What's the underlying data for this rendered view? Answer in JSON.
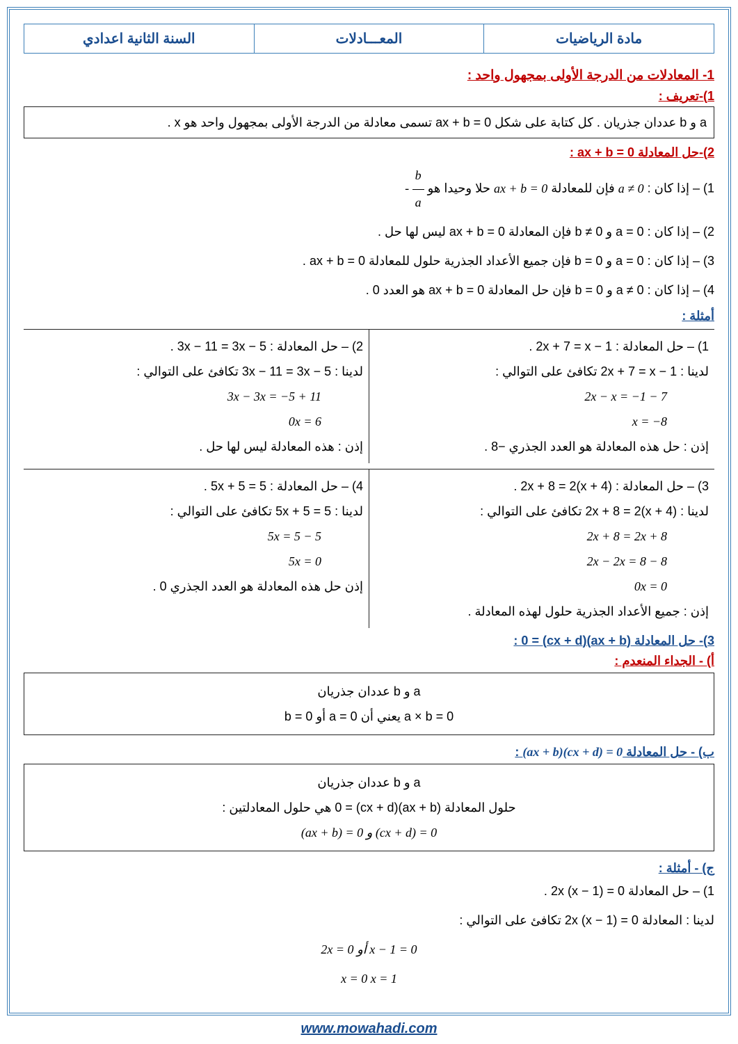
{
  "header": {
    "subject": "مادة الرياضيات",
    "topic": "المعـــادلات",
    "level": "السنة الثانية اعدادي"
  },
  "section1": {
    "title": "1- المعادلات من الدرجة الأولى بمجهول واحد :",
    "def_title": "1)-تعريف :",
    "def_text": "a و b عددان جذريان . كل كتابة على شكل ax + b = 0 تسمى معادلة من الدرجة الأولى بمجهول واحد هو x .",
    "solve_title": "2)-حل المعادلة    ax + b = 0 :",
    "case1_pre": "1) – إذا كان :  ",
    "case1_cond": "a ≠ 0",
    "case1_mid": "  فإن للمعادلة  ",
    "case1_eq": "ax + b = 0",
    "case1_post": "  حلا وحيدا هو  ",
    "case2": "2) – إذا كان :  a = 0  و  b ≠ 0  فإن المعادلة ax + b = 0  ليس لها حل .",
    "case3": "3) – إذا كان :  a = 0  و  b = 0  فإن جميع الأعداد الجذرية حلول للمعادلة ax + b = 0 .",
    "case4": "4) – إذا كان :  a ≠ 0  و  b = 0  فإن حل المعادلة ax + b = 0  هو العدد 0 .",
    "examples_title": "أمثلة :",
    "ex1_title": "1) – حل المعادلة :  2x + 7 = x − 1 .",
    "ex1_l1": "لدينا :    2x + 7 = x − 1   تكافئ على التوالي :",
    "ex1_l2": "2x − x = −1 − 7",
    "ex1_l3": "x = −8",
    "ex1_conc": "إذن : حل هذه المعادلة هو العدد الجذري  −8 .",
    "ex2_title": "2) – حل المعادلة :  3x − 11 = 3x − 5 .",
    "ex2_l1": "لدينا :    3x − 11 = 3x − 5    تكافئ على التوالي :",
    "ex2_l2": "3x − 3x = −5 + 11",
    "ex2_l3": "0x = 6",
    "ex2_conc": "إذن : هذه المعادلة ليس لها حل .",
    "ex3_title": "3) – حل المعادلة :   2x + 8 = 2(x + 4) .",
    "ex3_l1": "لدينا :    2x + 8 = 2(x + 4)  تكافئ على التوالي :",
    "ex3_l2": "2x + 8 = 2x + 8",
    "ex3_l3": "2x − 2x = 8 − 8",
    "ex3_l4": "0x = 0",
    "ex3_conc": "إذن : جميع الأعداد الجذرية حلول لهذه المعادلة .",
    "ex4_title": "4) – حل المعادلة :  5x + 5 = 5 .",
    "ex4_l1": "لدينا :   5x + 5 = 5          تكافئ على التوالي :",
    "ex4_l2": "5x = 5 − 5",
    "ex4_l3": "5x = 0",
    "ex4_conc": "إذن حل هذه المعادلة هو العدد الجذري  0 ."
  },
  "section3": {
    "title": "3)- حل المعادلة (ax + b)(cx + d) = 0 :",
    "sub_a": "أ) - الجداء المنعدم :",
    "box_a_l1": "a  و b  عددان جذريان",
    "box_a_l2": "a × b = 0  يعني أن  a = 0  أو  b = 0",
    "sub_b_pre": "ب) - حل المعادلة  ",
    "sub_b_eq": "(ax + b)(cx + d) = 0",
    "sub_b_post": " :",
    "box_b_l1": "a  و b  عددان جذريان",
    "box_b_l2": "حلول المعادلة (ax + b)(cx + d) = 0  هي حلول المعادلتين :",
    "box_b_l3": "(ax + b) = 0    و   (cx + d) = 0",
    "sub_c": "ج) - أمثلة :",
    "exc_title": "1) – حل المعادلة  2x (x − 1) = 0 .",
    "exc_l1": "لدينا : المعادلة 2x (x − 1) = 0 تكافئ على التوالي :",
    "exc_l2": "2x = 0   أو   x − 1 = 0",
    "exc_l3": "x = 0          x = 1"
  },
  "footer": "www.mowahadi.com"
}
